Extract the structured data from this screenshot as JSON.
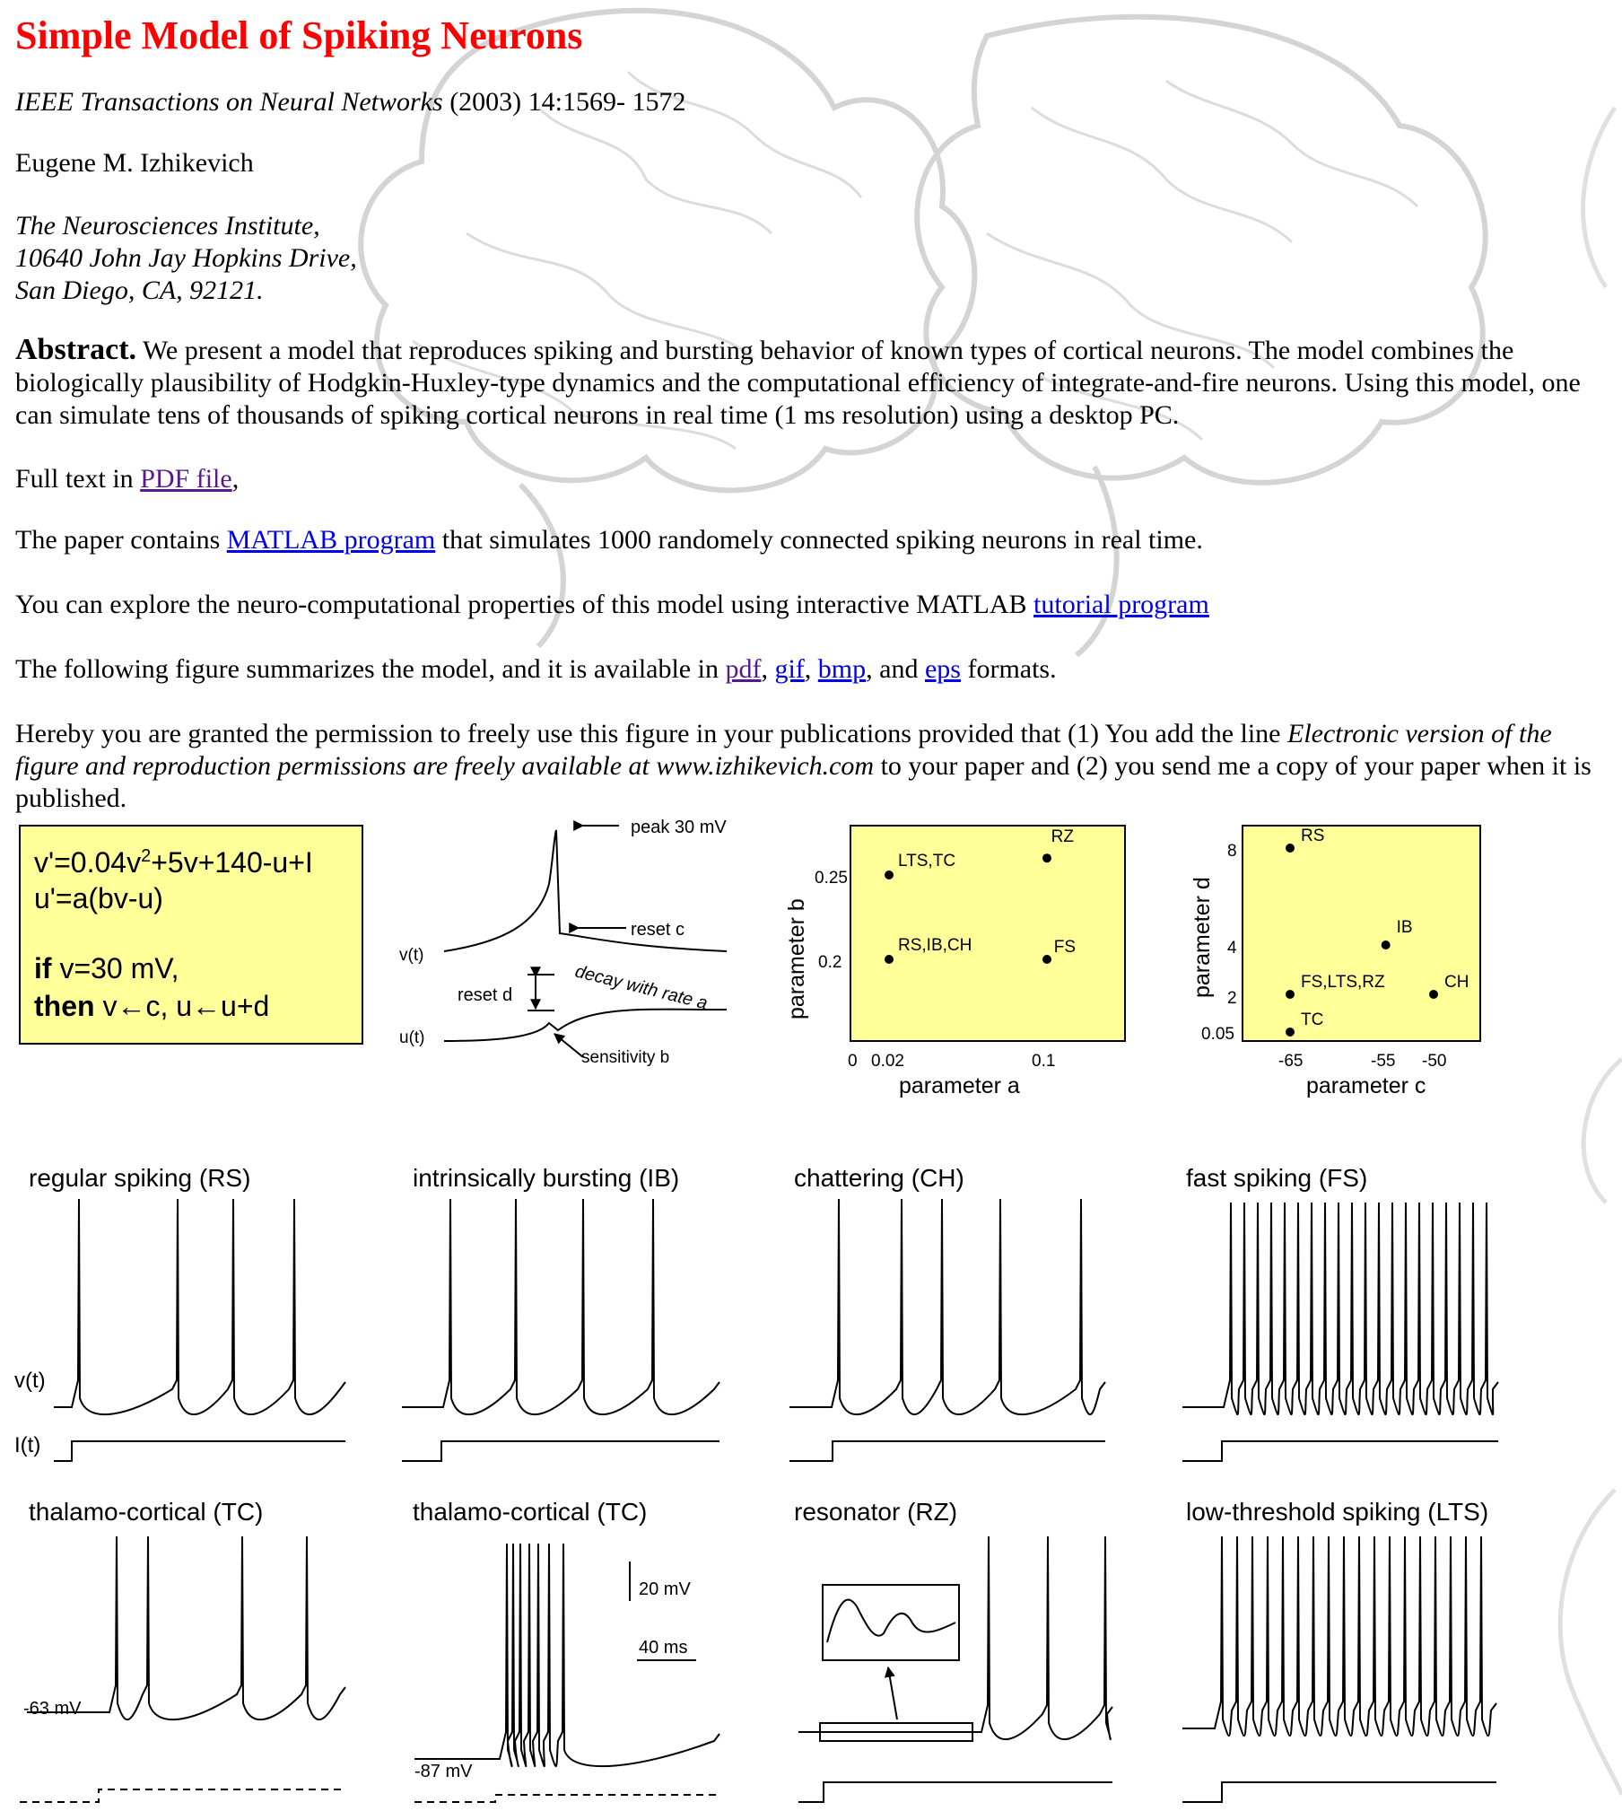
{
  "title": "Simple Model of Spiking Neurons",
  "citation": {
    "journal": "IEEE Transactions on Neural Networks",
    "rest": " (2003) 14:1569- 1572"
  },
  "author": "Eugene M. Izhikevich",
  "address": {
    "line1": "The Neurosciences Institute,",
    "line2": "10640 John Jay Hopkins Drive,",
    "line3": "San Diego, CA, 92121."
  },
  "abstract": {
    "label": "Abstract.",
    "text": " We present a model that reproduces spiking and bursting behavior of known types of cortical neurons. The model combines the biologically plausibility of Hodgkin-Huxley-type dynamics and the computational efficiency of integrate-and-fire neurons. Using this model, one can simulate tens of thousands of spiking cortical neurons in real time (1 ms resolution) using a desktop PC."
  },
  "fulltext": {
    "prefix": "Full text in ",
    "link": "PDF file",
    "suffix": ","
  },
  "matlab": {
    "prefix": "The paper contains ",
    "link": "MATLAB program",
    "suffix": " that simulates 1000 randomely connected spiking neurons in real time."
  },
  "tutorial": {
    "prefix": "You can explore the neuro-computational properties of this model using interactive MATLAB ",
    "link": "tutorial program"
  },
  "formats": {
    "prefix": "The following figure summarizes the model, and it is available in ",
    "pdf": "pdf",
    "sep1": ", ",
    "gif": "gif",
    "sep2": ", ",
    "bmp": "bmp",
    "sep3": ", and ",
    "eps": "eps",
    "suffix": " formats."
  },
  "permission": {
    "prefix": "Hereby you are granted the permission to freely use this figure in your publications provided that (1) You add the line ",
    "italic": "Electronic version of the figure and reproduction permissions are freely available at www.izhikevich.com",
    "suffix": " to your paper and (2) you send me a copy of your paper when it is published."
  },
  "colors": {
    "title": "#ff0000",
    "visited_link": "#551a8b",
    "link": "#0000ee",
    "panel_fill": "#ffff99",
    "background_art": "#d8d8d8"
  },
  "figure": {
    "equations": {
      "eq1_a": "v'=0.04v",
      "eq1_sup": "2",
      "eq1_b": "+5v+140-u+I",
      "eq2": "u'=a(bv-u)",
      "if_kw": "if",
      "if_rest": " v=30 mV,",
      "then_kw": "then",
      "then_rest": " v←c,   u←u+d"
    },
    "diagram": {
      "peak": "peak 30 mV",
      "reset_c": "reset  c",
      "v_label": "v(t)",
      "u_label": "u(t)",
      "reset_d": "reset  d",
      "decay": "decay with  rate  a",
      "sensitivity": "sensitivity  b"
    },
    "scatter_ab": {
      "xlabel": "parameter a",
      "ylabel": "parameter b",
      "xticks": [
        "0",
        "0.02",
        "0.1"
      ],
      "yticks": [
        "0.2",
        "0.25"
      ],
      "points": [
        {
          "a": 0.02,
          "b": 0.25,
          "label": "LTS,TC"
        },
        {
          "a": 0.02,
          "b": 0.2,
          "label": "RS,IB,CH"
        },
        {
          "a": 0.1,
          "b": 0.26,
          "label": "RZ"
        },
        {
          "a": 0.1,
          "b": 0.2,
          "label": "FS"
        }
      ]
    },
    "scatter_cd": {
      "xlabel": "parameter c",
      "ylabel": "parameter d",
      "xticks": [
        "-65",
        "-55",
        "-50"
      ],
      "yticks": [
        "0.05",
        "2",
        "4",
        "8"
      ],
      "points": [
        {
          "c": -65,
          "d": 8,
          "label": "RS"
        },
        {
          "c": -55,
          "d": 4,
          "label": "IB"
        },
        {
          "c": -65,
          "d": 2,
          "label": "FS,LTS,RZ"
        },
        {
          "c": -50,
          "d": 2,
          "label": "CH"
        },
        {
          "c": -65,
          "d": 0.05,
          "label": "TC"
        }
      ]
    },
    "traces": {
      "rs": "regular spiking (RS)",
      "ib": "intrinsically bursting (IB)",
      "ch": "chattering (CH)",
      "fs": "fast spiking (FS)",
      "tc1": "thalamo-cortical (TC)",
      "tc2": "thalamo-cortical (TC)",
      "rz": "resonator (RZ)",
      "lts": "low-threshold spiking (LTS)",
      "v_label": "v(t)",
      "i_label": "I(t)",
      "mv63": "-63 mV",
      "mv87": "-87 mV",
      "scale_mv": "20 mV",
      "scale_ms": "40 ms"
    }
  }
}
